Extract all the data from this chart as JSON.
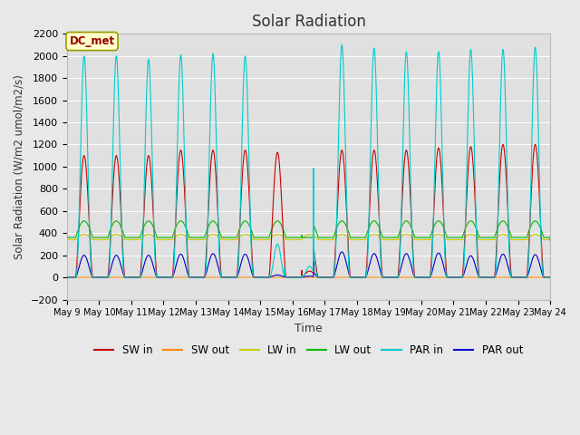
{
  "title": "Solar Radiation",
  "ylabel": "Solar Radiation (W/m2 umol/m2/s)",
  "xlabel": "Time",
  "ylim": [
    -200,
    2200
  ],
  "fig_bg_color": "#e8e8e8",
  "plot_bg_color": "#e0e0e0",
  "annotation_text": "DC_met",
  "annotation_box_color": "#ffffcc",
  "annotation_text_color": "#990000",
  "tick_dates": [
    "May 9",
    "May 10",
    "May 11",
    "May 12",
    "May 13",
    "May 14",
    "May 15",
    "May 16",
    "May 17",
    "May 18",
    "May 19",
    "May 20",
    "May 21",
    "May 22",
    "May 23",
    "May 24"
  ],
  "colors": {
    "sw_in": "#cc0000",
    "sw_out": "#ff8800",
    "lw_in": "#cccc00",
    "lw_out": "#00bb00",
    "par_in": "#00cccc",
    "par_out": "#0000cc"
  },
  "legend_labels": [
    "SW in",
    "SW out",
    "LW in",
    "LW out",
    "PAR in",
    "PAR out"
  ],
  "grid_color": "#ffffff",
  "yticks": [
    -200,
    0,
    200,
    400,
    600,
    800,
    1000,
    1200,
    1400,
    1600,
    1800,
    2000,
    2200
  ]
}
